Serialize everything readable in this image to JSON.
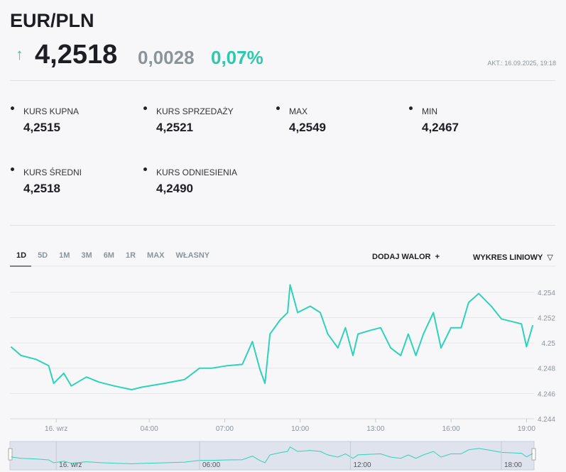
{
  "header": {
    "title": "EUR/PLN",
    "price": "4,2518",
    "change": "0,0028",
    "change_pct": "0,07%",
    "updated": "AKT.: 16.09.2025, 19:18"
  },
  "stats": [
    {
      "label": "KURS KUPNA",
      "value": "4,2515"
    },
    {
      "label": "KURS SPRZEDAŻY",
      "value": "4,2521"
    },
    {
      "label": "MAX",
      "value": "4,2549"
    },
    {
      "label": "MIN",
      "value": "4,2467"
    },
    {
      "label": "KURS ŚREDNI",
      "value": "4,2518"
    },
    {
      "label": "KURS ODNIESIENIA",
      "value": "4,2490"
    }
  ],
  "tabs": [
    "1D",
    "5D",
    "1M",
    "3M",
    "6M",
    "1R",
    "MAX",
    "WŁASNY"
  ],
  "actions": {
    "add": "DODAJ WALOR",
    "chart_type": "WYKRES LINIOWY"
  },
  "chart_data": {
    "type": "line",
    "color": "#2ed3b7",
    "grid": true,
    "x": [
      -1.5,
      -1.1,
      -0.5,
      0,
      0.2,
      0.6,
      0.9,
      1.5,
      2.0,
      2.6,
      3.3,
      3.7,
      4.6,
      5.4,
      6.0,
      6.5,
      7.1,
      7.7,
      8.1,
      8.4,
      8.6,
      8.8,
      9.2,
      9.5,
      9.6,
      9.9,
      10.4,
      10.8,
      11.1,
      11.5,
      11.8,
      12.1,
      12.3,
      12.8,
      13.2,
      13.6,
      14.0,
      14.3,
      14.6,
      14.9,
      15.3,
      15.6,
      16.0,
      16.4,
      16.7,
      17.1,
      17.6,
      18.0,
      18.4,
      18.8,
      19.0,
      19.25
    ],
    "values": [
      4.2497,
      4.249,
      4.2487,
      4.2482,
      4.2468,
      4.2476,
      4.2466,
      4.2473,
      4.2469,
      4.2466,
      4.2463,
      4.2465,
      4.2468,
      4.2471,
      4.248,
      4.248,
      4.2482,
      4.2483,
      4.2501,
      4.2479,
      4.2468,
      4.2507,
      4.2518,
      4.2524,
      4.2546,
      4.2524,
      4.2529,
      4.2524,
      4.2507,
      4.2496,
      4.2512,
      4.249,
      4.2507,
      4.251,
      4.2512,
      4.2496,
      4.249,
      4.2507,
      4.249,
      4.2507,
      4.2524,
      4.2496,
      4.2512,
      4.2512,
      4.2532,
      4.2539,
      4.2529,
      4.2519,
      4.2517,
      4.2515,
      4.2497,
      4.2514
    ],
    "xlim": [
      -1.54,
      19.3
    ],
    "ylim": [
      4.244,
      4.2559
    ],
    "xticks": [
      {
        "value": 0.3,
        "label": "16. wrz"
      },
      {
        "value": 4,
        "label": "04:00"
      },
      {
        "value": 7,
        "label": "07:00"
      },
      {
        "value": 10,
        "label": "10:00"
      },
      {
        "value": 13,
        "label": "13:00"
      },
      {
        "value": 16,
        "label": "16:00"
      },
      {
        "value": 19,
        "label": "19:00"
      }
    ],
    "yticks": [
      4.244,
      4.246,
      4.248,
      4.25,
      4.252,
      4.254
    ]
  },
  "navigator": {
    "xticks": [
      {
        "value": 0.3,
        "label": "16. wrz"
      },
      {
        "value": 6,
        "label": "06:00"
      },
      {
        "value": 12,
        "label": "12:00"
      },
      {
        "value": 18,
        "label": "18:00"
      }
    ]
  }
}
